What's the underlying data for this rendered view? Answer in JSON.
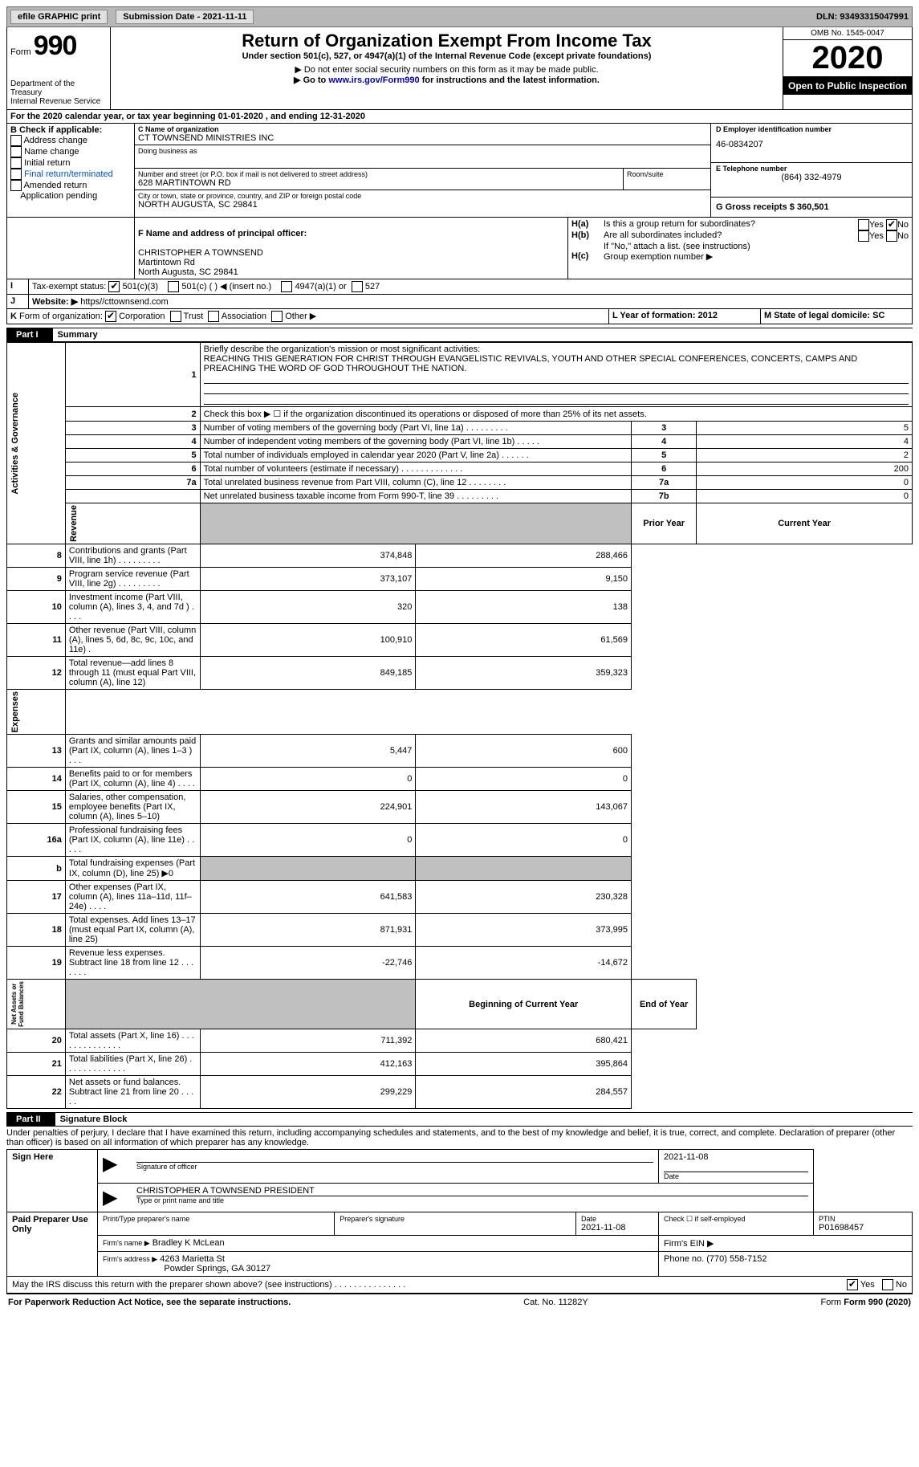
{
  "topbar": {
    "efile": "efile GRAPHIC print",
    "submission_label": "Submission Date - 2021-11-11",
    "dln": "DLN: 93493315047991"
  },
  "header": {
    "form_label": "Form",
    "form_number": "990",
    "title": "Return of Organization Exempt From Income Tax",
    "subtitle": "Under section 501(c), 527, or 4947(a)(1) of the Internal Revenue Code (except private foundations)",
    "warn1": "▶ Do not enter social security numbers on this form as it may be made public.",
    "warn2_pre": "▶ Go to ",
    "warn2_link": "www.irs.gov/Form990",
    "warn2_post": " for instructions and the latest information.",
    "dept": "Department of the Treasury\nInternal Revenue Service",
    "omb": "OMB No. 1545-0047",
    "year": "2020",
    "public": "Open to Public Inspection"
  },
  "section_a": {
    "period": "For the 2020 calendar year, or tax year beginning 01-01-2020   , and ending 12-31-2020",
    "b_label": "B Check if applicable:",
    "checks": [
      "Address change",
      "Name change",
      "Initial return",
      "Final return/terminated",
      "Amended return",
      "Application pending"
    ],
    "c_label": "C Name of organization",
    "org_name": "CT TOWNSEND MINISTRIES INC",
    "dba_label": "Doing business as",
    "street_label": "Number and street (or P.O. box if mail is not delivered to street address)",
    "street": "628 MARTINTOWN RD",
    "room_label": "Room/suite",
    "city_label": "City or town, state or province, country, and ZIP or foreign postal code",
    "city": "NORTH AUGUSTA, SC  29841",
    "d_label": "D Employer identification number",
    "ein": "46-0834207",
    "e_label": "E Telephone number",
    "phone": "(864) 332-4979",
    "g_label": "G Gross receipts $ 360,501",
    "f_label": "F  Name and address of principal officer:",
    "officer": "CHRISTOPHER A TOWNSEND\nMartintown Rd\nNorth Augusta, SC  29841",
    "ha": "Is this a group return for subordinates?",
    "hb": "Are all subordinates included?",
    "hb_note": "If \"No,\" attach a list. (see instructions)",
    "hc": "Group exemption number ▶",
    "i_label": "Tax-exempt status:",
    "i_501c3": "501(c)(3)",
    "i_501c": "501(c) (  ) ◀ (insert no.)",
    "i_4947": "4947(a)(1) or",
    "i_527": "527",
    "j_label": "Website: ▶",
    "website": "https//cttownsend.com",
    "k_label": "Form of organization:",
    "k_opts": [
      "Corporation",
      "Trust",
      "Association",
      "Other ▶"
    ],
    "l_label": "L Year of formation: 2012",
    "m_label": "M State of legal domicile: SC",
    "hyes": "Yes",
    "hno": "No"
  },
  "part1": {
    "part": "Part I",
    "title": "Summary",
    "line1_label": "Briefly describe the organization's mission or most significant activities:",
    "mission": "REACHING THIS GENERATION FOR CHRIST THROUGH EVANGELISTIC REVIVALS, YOUTH AND OTHER SPECIAL CONFERENCES, CONCERTS, CAMPS AND PREACHING THE WORD OF GOD THROUGHOUT THE NATION.",
    "line2": "Check this box ▶ ☐  if the organization discontinued its operations or disposed of more than 25% of its net assets.",
    "gov_rows": [
      {
        "n": "3",
        "label": "Number of voting members of the governing body (Part VI, line 1a)  .   .   .   .   .   .   .   .   .",
        "box": "3",
        "val": "5"
      },
      {
        "n": "4",
        "label": "Number of independent voting members of the governing body (Part VI, line 1b)  .   .   .   .   .",
        "box": "4",
        "val": "4"
      },
      {
        "n": "5",
        "label": "Total number of individuals employed in calendar year 2020 (Part V, line 2a)  .   .   .   .   .   .",
        "box": "5",
        "val": "2"
      },
      {
        "n": "6",
        "label": "Total number of volunteers (estimate if necessary)  .   .   .   .   .   .   .   .   .   .   .   .   .",
        "box": "6",
        "val": "200"
      },
      {
        "n": "7a",
        "label": "Total unrelated business revenue from Part VIII, column (C), line 12  .   .   .   .   .   .   .   .",
        "box": "7a",
        "val": "0"
      },
      {
        "n": "",
        "label": "Net unrelated business taxable income from Form 990-T, line 39  .   .   .   .   .   .   .   .   .",
        "box": "7b",
        "val": "0"
      }
    ],
    "col_prior": "Prior Year",
    "col_current": "Current Year",
    "rev_rows": [
      {
        "n": "8",
        "label": "Contributions and grants (Part VIII, line 1h)  .   .   .   .   .   .   .   .   .",
        "py": "374,848",
        "cy": "288,466"
      },
      {
        "n": "9",
        "label": "Program service revenue (Part VIII, line 2g)  .   .   .   .   .   .   .   .   .",
        "py": "373,107",
        "cy": "9,150"
      },
      {
        "n": "10",
        "label": "Investment income (Part VIII, column (A), lines 3, 4, and 7d )  .   .   .   .",
        "py": "320",
        "cy": "138"
      },
      {
        "n": "11",
        "label": "Other revenue (Part VIII, column (A), lines 5, 6d, 8c, 9c, 10c, and 11e)  .",
        "py": "100,910",
        "cy": "61,569"
      },
      {
        "n": "12",
        "label": "Total revenue—add lines 8 through 11 (must equal Part VIII, column (A), line 12)",
        "py": "849,185",
        "cy": "359,323"
      }
    ],
    "exp_rows": [
      {
        "n": "13",
        "label": "Grants and similar amounts paid (Part IX, column (A), lines 1–3 )  .   .   .",
        "py": "5,447",
        "cy": "600"
      },
      {
        "n": "14",
        "label": "Benefits paid to or for members (Part IX, column (A), line 4)  .   .   .   .",
        "py": "0",
        "cy": "0"
      },
      {
        "n": "15",
        "label": "Salaries, other compensation, employee benefits (Part IX, column (A), lines 5–10)",
        "py": "224,901",
        "cy": "143,067"
      },
      {
        "n": "16a",
        "label": "Professional fundraising fees (Part IX, column (A), line 11e)  .   .   .   .   .",
        "py": "0",
        "cy": "0"
      },
      {
        "n": "b",
        "label": "Total fundraising expenses (Part IX, column (D), line 25) ▶0",
        "py": "__shade__",
        "cy": "__shade__"
      },
      {
        "n": "17",
        "label": "Other expenses (Part IX, column (A), lines 11a–11d, 11f–24e)  .   .   .   .",
        "py": "641,583",
        "cy": "230,328"
      },
      {
        "n": "18",
        "label": "Total expenses. Add lines 13–17 (must equal Part IX, column (A), line 25)",
        "py": "871,931",
        "cy": "373,995"
      },
      {
        "n": "19",
        "label": "Revenue less expenses. Subtract line 18 from line 12  .   .   .   .   .   .   .",
        "py": "-22,746",
        "cy": "-14,672"
      }
    ],
    "col_begin": "Beginning of Current Year",
    "col_end": "End of Year",
    "na_rows": [
      {
        "n": "20",
        "label": "Total assets (Part X, line 16)  .   .   .   .   .   .   .   .   .   .   .   .   .   .",
        "py": "711,392",
        "cy": "680,421"
      },
      {
        "n": "21",
        "label": "Total liabilities (Part X, line 26)  .   .   .   .   .   .   .   .   .   .   .   .   .",
        "py": "412,163",
        "cy": "395,864"
      },
      {
        "n": "22",
        "label": "Net assets or fund balances. Subtract line 21 from line 20  .   .   .   .   .",
        "py": "299,229",
        "cy": "284,557"
      }
    ],
    "side_ag": "Activities & Governance",
    "side_rev": "Revenue",
    "side_exp": "Expenses",
    "side_na": "Net Assets or\nFund Balances"
  },
  "part2": {
    "part": "Part II",
    "title": "Signature Block",
    "penalty": "Under penalties of perjury, I declare that I have examined this return, including accompanying schedules and statements, and to the best of my knowledge and belief, it is true, correct, and complete. Declaration of preparer (other than officer) is based on all information of which preparer has any knowledge.",
    "sign_here": "Sign Here",
    "sig_officer": "Signature of officer",
    "sig_date": "2021-11-08",
    "officer_name": "CHRISTOPHER A TOWNSEND  PRESIDENT",
    "officer_name_label": "Type or print name and title",
    "date_label": "Date",
    "paid": "Paid Preparer Use Only",
    "prep_name_label": "Print/Type preparer's name",
    "prep_sig_label": "Preparer's signature",
    "prep_date_label": "Date",
    "prep_date": "2021-11-08",
    "check_if": "Check ☐ if self-employed",
    "ptin_label": "PTIN",
    "ptin": "P01698457",
    "firm_name_label": "Firm's name    ▶",
    "firm_name": "Bradley K McLean",
    "firm_ein_label": "Firm's EIN ▶",
    "firm_addr_label": "Firm's address ▶",
    "firm_addr1": "4263 Marietta St",
    "firm_addr2": "Powder Springs, GA  30127",
    "firm_phone_label": "Phone no. (770) 558-7152",
    "may_irs": "May the IRS discuss this return with the preparer shown above? (see instructions)  .   .   .   .   .   .   .   .   .   .   .   .   .   .   .",
    "yes": "Yes",
    "no": "No"
  },
  "footer": {
    "pra": "For Paperwork Reduction Act Notice, see the separate instructions.",
    "cat": "Cat. No. 11282Y",
    "form": "Form 990 (2020)"
  }
}
